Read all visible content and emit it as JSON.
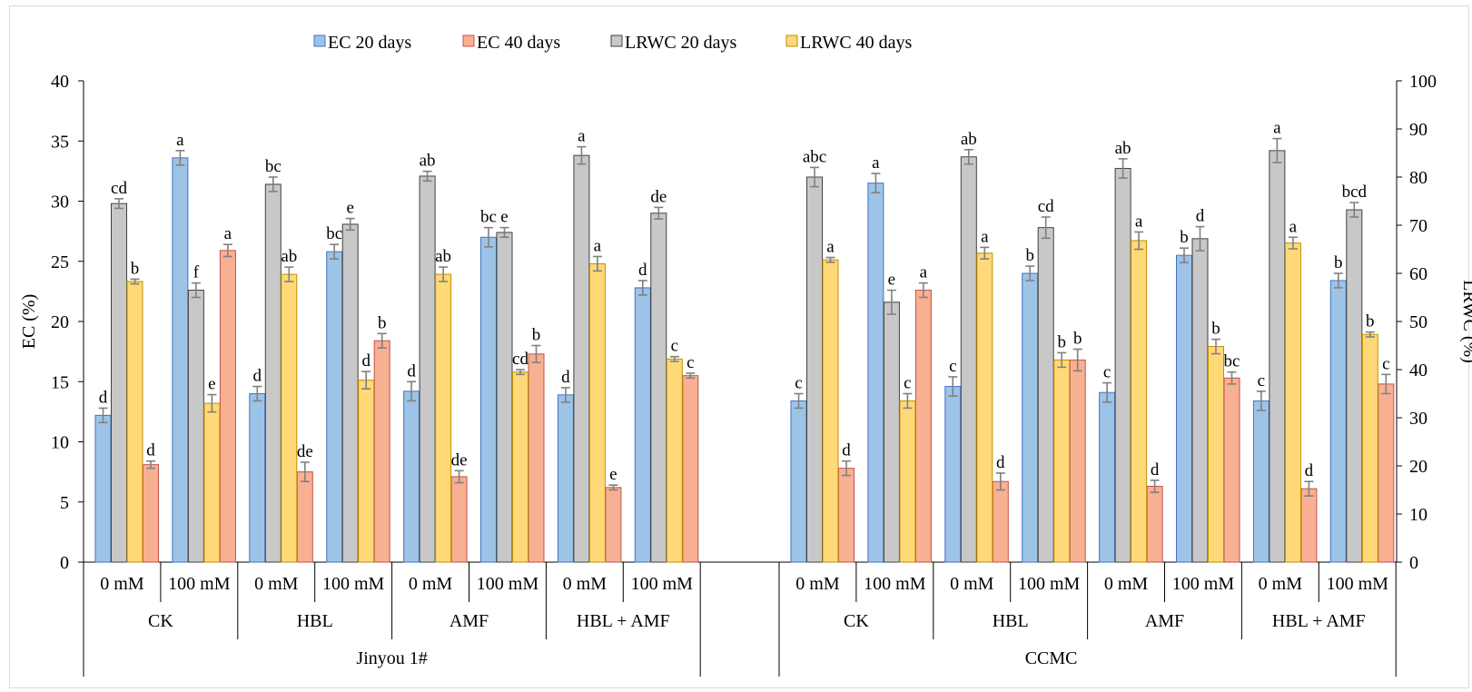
{
  "chart_data": {
    "type": "bar",
    "title": "",
    "ylabel": "EC (%)",
    "y2label": "LRWC (%)",
    "ylim": [
      0,
      40
    ],
    "y2lim": [
      0,
      100
    ],
    "yticks": [
      "0",
      "5",
      "10",
      "15",
      "20",
      "25",
      "30",
      "35",
      "40"
    ],
    "y2ticks": [
      "0",
      "10",
      "20",
      "30",
      "40",
      "50",
      "60",
      "70",
      "80",
      "90",
      "100"
    ],
    "legend": {
      "position": "top",
      "entries": [
        "EC 20 days",
        "EC 40 days",
        "LRWC 20 days",
        "LRWC 40 days"
      ]
    },
    "colors": {
      "ec20": "#9DC3E6",
      "ec40": "#F8B092",
      "lrwc20": "#C8C8C8",
      "lrwc40": "#FFD978",
      "ec20_edge": "#4472C4",
      "ec40_edge": "#C0504D",
      "lrwc20_edge": "#404040",
      "lrwc40_edge": "#BF8F00"
    },
    "cultivars": [
      "Jinyou 1#",
      "CCMC"
    ],
    "treatments": [
      "CK",
      "HBL",
      "AMF",
      "HBL + AMF"
    ],
    "concentrations": [
      "0 mM",
      "100 mM"
    ],
    "series": [
      {
        "name": "EC 20 days",
        "axis": "left",
        "values": [
          12.2,
          33.6,
          14.0,
          25.8,
          14.2,
          27.0,
          13.9,
          22.8,
          13.4,
          31.5,
          14.6,
          24.0,
          14.1,
          25.5,
          13.4,
          23.4
        ],
        "errors": [
          0.6,
          0.6,
          0.6,
          0.6,
          0.8,
          0.8,
          0.6,
          0.6,
          0.6,
          0.8,
          0.8,
          0.6,
          0.8,
          0.6,
          0.8,
          0.6
        ],
        "labels": [
          "d",
          "a",
          "d",
          "bc",
          "d",
          "bc",
          "d",
          "d",
          "c",
          "a",
          "c",
          "b",
          "c",
          "b",
          "c",
          "b"
        ]
      },
      {
        "name": "EC 40 days",
        "axis": "left",
        "values": [
          8.1,
          25.9,
          7.5,
          18.4,
          7.1,
          17.3,
          6.2,
          15.5,
          7.8,
          22.6,
          6.7,
          16.8,
          6.3,
          15.3,
          6.1,
          14.8
        ],
        "errors": [
          0.3,
          0.5,
          0.8,
          0.6,
          0.5,
          0.7,
          0.2,
          0.2,
          0.6,
          0.6,
          0.7,
          0.9,
          0.5,
          0.5,
          0.6,
          0.8
        ],
        "labels": [
          "d",
          "a",
          "de",
          "b",
          "de",
          "b",
          "e",
          "c",
          "d",
          "a",
          "d",
          "b",
          "d",
          "bc",
          "d",
          "c"
        ]
      },
      {
        "name": "LRWC 20 days",
        "axis": "right",
        "values": [
          74.5,
          56.5,
          78.5,
          70.2,
          80.2,
          68.5,
          84.5,
          72.5,
          80.0,
          54.0,
          84.2,
          69.5,
          81.8,
          67.2,
          85.5,
          73.2
        ],
        "errors": [
          1.0,
          1.5,
          1.5,
          1.2,
          1.0,
          1.0,
          1.8,
          1.2,
          2.0,
          2.5,
          1.5,
          2.2,
          2.0,
          2.5,
          2.5,
          1.5
        ],
        "labels": [
          "cd",
          "f",
          "bc",
          "e",
          "ab",
          "e",
          "a",
          "de",
          "abc",
          "e",
          "ab",
          "cd",
          "ab",
          "d",
          "a",
          "bcd"
        ]
      },
      {
        "name": "LRWC 40 days",
        "axis": "right",
        "values": [
          58.3,
          33.0,
          59.8,
          37.8,
          59.8,
          39.5,
          62.0,
          42.2,
          62.8,
          33.5,
          64.2,
          42.0,
          66.8,
          44.8,
          66.3,
          47.3
        ],
        "errors": [
          0.5,
          1.8,
          1.5,
          1.8,
          1.5,
          0.5,
          1.5,
          0.5,
          0.5,
          1.5,
          1.2,
          1.5,
          1.8,
          1.5,
          1.2,
          0.5
        ],
        "labels": [
          "b",
          "e",
          "ab",
          "d",
          "ab",
          "cd",
          "a",
          "c",
          "a",
          "c",
          "a",
          "b",
          "a",
          "b",
          "a",
          "b"
        ]
      }
    ]
  }
}
